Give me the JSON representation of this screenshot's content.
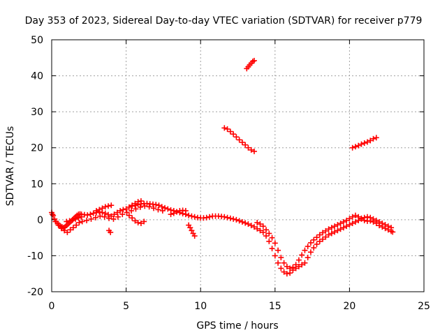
{
  "chart_data": {
    "type": "scatter",
    "title": "Day 353 of 2023, Sidereal Day-to-day VTEC variation (SDTVAR) for receiver p779",
    "xlabel": "GPS time / hours",
    "ylabel": "SDTVAR / TECUs",
    "xlim": [
      0,
      25
    ],
    "ylim": [
      -20,
      50
    ],
    "xticks": [
      "0",
      "5",
      "10",
      "15",
      "20",
      "25"
    ],
    "yticks": [
      "-20",
      "-10",
      "0",
      "10",
      "20",
      "30",
      "40",
      "50"
    ],
    "grid": true,
    "marker": "plus",
    "color": "#ff0000",
    "series": [
      {
        "name": "SDTVAR",
        "x": [
          0.0,
          0.1,
          0.2,
          0.3,
          0.4,
          0.5,
          0.6,
          0.7,
          0.8,
          0.9,
          1.0,
          1.1,
          1.2,
          1.3,
          1.4,
          1.5,
          1.6,
          1.7,
          1.8,
          1.9,
          2.0,
          2.2,
          2.4,
          2.6,
          2.8,
          3.0,
          3.2,
          3.4,
          3.6,
          3.8,
          4.0,
          4.2,
          4.4,
          4.6,
          4.8,
          5.0,
          5.2,
          5.4,
          5.6,
          5.8,
          6.0,
          6.2,
          6.4,
          6.6,
          6.8,
          7.0,
          7.2,
          7.4,
          7.6,
          7.8,
          8.0,
          8.2,
          8.4,
          8.6,
          8.8,
          9.0,
          9.2,
          9.4,
          9.6,
          9.8,
          10.0,
          10.2,
          10.4,
          10.6,
          10.8,
          11.0,
          11.2,
          11.4,
          11.6,
          11.8,
          12.0,
          12.2,
          12.4,
          12.6,
          12.8,
          13.0,
          13.2,
          13.4,
          13.6,
          13.8,
          14.0,
          14.2,
          14.4,
          14.6,
          14.8,
          15.0,
          15.2,
          15.4,
          15.6,
          15.8,
          16.0,
          16.2,
          16.4,
          16.6,
          16.8,
          17.0,
          17.2,
          17.4,
          17.6,
          17.8,
          18.0,
          18.2,
          18.4,
          18.6,
          18.8,
          19.0,
          19.2,
          19.4,
          19.6,
          19.8,
          20.0,
          20.2,
          20.4,
          20.6,
          20.8,
          21.0,
          21.2,
          21.4,
          21.6,
          21.8,
          22.0,
          22.2,
          22.4,
          22.6,
          22.8,
          0.05,
          0.25,
          0.45,
          0.65,
          0.85,
          1.05,
          1.25,
          1.45,
          1.65,
          1.85,
          2.05,
          2.35,
          2.65,
          2.95,
          3.25,
          3.55,
          3.85,
          4.15,
          4.45,
          4.75,
          5.05,
          5.35,
          5.65,
          5.95,
          6.25,
          6.55,
          6.85,
          7.15,
          7.45,
          1.0,
          1.2,
          1.4,
          1.6,
          1.8,
          2.0,
          3.0,
          3.2,
          3.4,
          3.6,
          3.8,
          4.0,
          3.85,
          3.95,
          5.2,
          5.4,
          5.6,
          5.8,
          6.0,
          6.2,
          5.4,
          5.6,
          5.8,
          6.0,
          9.2,
          9.3,
          9.4,
          9.5,
          9.6,
          8.0,
          8.2,
          8.4,
          8.6,
          8.8,
          9.0,
          13.8,
          14.0,
          14.2,
          14.4,
          14.6,
          14.8,
          15.0,
          15.2,
          15.4,
          15.6,
          15.8,
          16.0,
          16.2,
          16.4,
          16.6,
          16.8,
          17.0,
          17.2,
          17.4,
          17.6,
          17.8,
          18.0,
          18.2,
          18.4,
          18.6,
          18.8,
          19.0,
          19.2,
          19.4,
          19.6,
          19.8,
          20.0,
          20.2,
          20.4,
          20.6,
          20.8,
          21.0,
          21.2,
          21.4,
          21.6,
          21.8,
          22.0,
          22.2,
          22.4,
          22.6,
          22.8,
          22.9,
          11.6,
          11.8,
          12.0,
          12.2,
          12.4,
          12.6,
          12.8,
          13.0,
          13.2,
          13.4,
          13.6,
          13.1,
          13.2,
          13.3,
          13.4,
          13.5,
          13.6,
          20.2,
          20.4,
          20.6,
          20.8,
          21.0,
          21.2,
          21.4,
          21.6,
          21.8
        ],
        "y": [
          2.0,
          1.2,
          0.2,
          -0.5,
          -1.0,
          -1.5,
          -1.8,
          -2.0,
          -2.2,
          -2.0,
          -1.6,
          -1.2,
          -0.8,
          -0.4,
          0.0,
          0.4,
          0.8,
          1.2,
          1.5,
          1.6,
          1.5,
          1.4,
          1.3,
          1.5,
          1.8,
          2.0,
          2.2,
          2.0,
          1.8,
          1.4,
          1.0,
          1.5,
          2.0,
          2.5,
          2.8,
          3.0,
          3.5,
          3.8,
          4.0,
          4.2,
          4.4,
          4.5,
          4.5,
          4.4,
          4.3,
          4.2,
          4.0,
          3.6,
          3.3,
          3.0,
          2.7,
          2.5,
          2.2,
          2.0,
          1.7,
          1.5,
          1.2,
          1.0,
          0.8,
          0.6,
          0.5,
          0.5,
          0.6,
          0.8,
          1.0,
          1.0,
          1.0,
          0.9,
          0.8,
          0.6,
          0.4,
          0.2,
          0.0,
          -0.3,
          -0.6,
          -0.9,
          -1.2,
          -1.6,
          -2.0,
          -2.5,
          -3.0,
          -3.5,
          -4.5,
          -6.0,
          -8.0,
          -10.0,
          -12.0,
          -13.5,
          -14.5,
          -15.0,
          -14.8,
          -14.0,
          -13.5,
          -13.0,
          -12.5,
          -12.0,
          -10.5,
          -9.0,
          -7.8,
          -6.8,
          -6.0,
          -5.4,
          -4.8,
          -4.2,
          -3.8,
          -3.4,
          -3.0,
          -2.6,
          -2.2,
          -1.8,
          -1.4,
          -1.0,
          -0.6,
          -0.2,
          0.2,
          0.6,
          0.8,
          0.6,
          0.2,
          -0.2,
          -0.6,
          -1.0,
          -1.4,
          -1.8,
          -2.2,
          1.5,
          -0.5,
          -1.5,
          -2.4,
          -3.0,
          -3.5,
          -2.8,
          -2.2,
          -1.5,
          -0.8,
          -0.5,
          -0.2,
          0.2,
          0.6,
          1.0,
          0.8,
          0.4,
          0.2,
          0.8,
          1.5,
          2.0,
          2.5,
          3.0,
          3.5,
          3.8,
          3.6,
          3.2,
          2.8,
          2.5,
          -0.5,
          -0.3,
          -0.1,
          0.2,
          0.5,
          0.8,
          2.5,
          2.8,
          3.2,
          3.6,
          3.8,
          4.0,
          -3.0,
          -3.5,
          1.2,
          0.5,
          -0.3,
          -0.8,
          -1.0,
          -0.5,
          4.0,
          4.5,
          5.0,
          5.2,
          -1.5,
          -2.2,
          -3.0,
          -3.8,
          -4.5,
          1.5,
          1.8,
          2.2,
          2.5,
          2.6,
          2.5,
          -0.8,
          -1.2,
          -1.8,
          -2.8,
          -3.8,
          -5.0,
          -6.5,
          -8.5,
          -10.5,
          -12.0,
          -13.0,
          -13.5,
          -13.2,
          -12.5,
          -11.2,
          -9.8,
          -8.5,
          -7.4,
          -6.4,
          -5.6,
          -4.9,
          -4.2,
          -3.6,
          -3.1,
          -2.6,
          -2.2,
          -1.8,
          -1.4,
          -1.0,
          -0.6,
          -0.2,
          0.3,
          0.8,
          1.2,
          0.8,
          0.4,
          -0.2,
          -0.4,
          -0.3,
          -0.6,
          -1.0,
          -1.6,
          -2.0,
          -2.4,
          -2.8,
          -3.2,
          -3.4,
          25.5,
          25.2,
          24.5,
          23.8,
          23.0,
          22.2,
          21.5,
          20.8,
          20.0,
          19.4,
          19.0,
          42.0,
          42.5,
          43.0,
          43.5,
          44.0,
          44.2,
          20.0,
          20.3,
          20.6,
          21.0,
          21.3,
          21.6,
          22.0,
          22.5,
          22.8
        ]
      }
    ]
  }
}
